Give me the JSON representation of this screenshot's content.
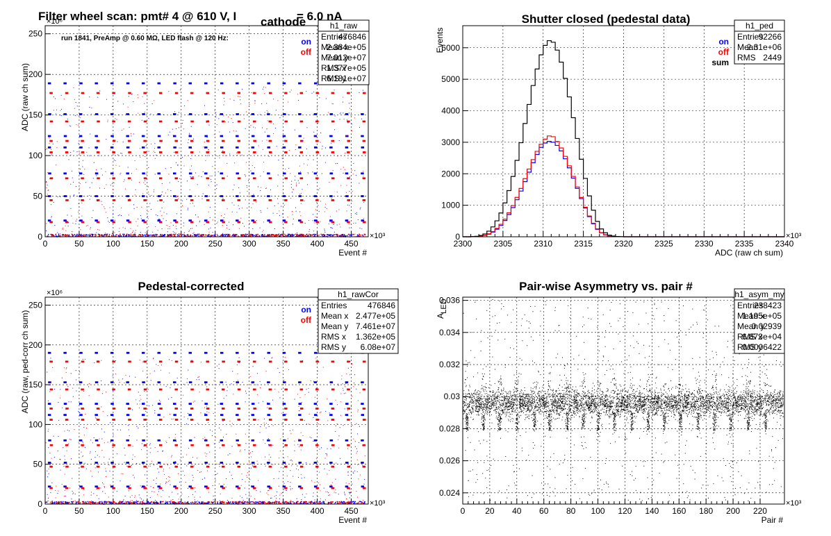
{
  "panels": [
    {
      "id": "raw",
      "title_main": "Filter wheel scan: pmt#   4 @   610 V, I",
      "title_sub": "cathode",
      "title_tail": "= 6.0 nA",
      "note": "run 1841, PreAmp @ 0.60 MΩ, LED flash @  120 Hz:",
      "xlabel": "Event #",
      "ylabel": "ADC (raw ch sum)",
      "x_exp": "×10³",
      "y_exp": "×10⁶",
      "xticks": [
        "0",
        "50",
        "100",
        "150",
        "200",
        "250",
        "300",
        "350",
        "400",
        "450"
      ],
      "yticks": [
        "0",
        "50",
        "100",
        "150",
        "200",
        "250"
      ],
      "legend": [
        {
          "label": "on",
          "color": "#0000ff"
        },
        {
          "label": "off",
          "color": "#ff0000"
        }
      ],
      "stats_name": "h1_raw",
      "stats": [
        [
          "Entries",
          "476846"
        ],
        [
          "Mean x",
          "2.384e+05"
        ],
        [
          "Mean y",
          "7.012e+07"
        ],
        [
          "RMS x",
          "1.377e+05"
        ],
        [
          "RMS y",
          "6.181e+07"
        ]
      ]
    },
    {
      "id": "ped",
      "title_main": "Shutter closed (pedestal data)",
      "xlabel": "ADC (raw ch sum)",
      "ylabel": "Events",
      "x_exp": "×10³",
      "xticks": [
        "2300",
        "2305",
        "2310",
        "2315",
        "2320",
        "2325",
        "2330",
        "2335",
        "2340"
      ],
      "yticks": [
        "0",
        "1000",
        "2000",
        "3000",
        "4000",
        "5000",
        "6000"
      ],
      "legend": [
        {
          "label": "on",
          "color": "#0000ff"
        },
        {
          "label": "off",
          "color": "#ff0000"
        },
        {
          "label": "sum",
          "color": "#000000"
        }
      ],
      "stats_name": "h1_ped",
      "stats": [
        [
          "Entries",
          "92266"
        ],
        [
          "Mean",
          "2.31e+06"
        ],
        [
          "RMS",
          "2449"
        ]
      ]
    },
    {
      "id": "cor",
      "title_main": "Pedestal-corrected",
      "xlabel": "Event #",
      "ylabel": "ADC (raw, ped-corr ch sum)",
      "x_exp": "×10³",
      "y_exp": "×10⁶",
      "xticks": [
        "0",
        "50",
        "100",
        "150",
        "200",
        "250",
        "300",
        "350",
        "400",
        "450"
      ],
      "yticks": [
        "0",
        "50",
        "100",
        "150",
        "200",
        "250"
      ],
      "legend": [
        {
          "label": "on",
          "color": "#0000ff"
        },
        {
          "label": "off",
          "color": "#ff0000"
        }
      ],
      "stats_name": "h1_rawCor",
      "stats": [
        [
          "Entries",
          "476846"
        ],
        [
          "Mean x",
          "2.477e+05"
        ],
        [
          "Mean y",
          "7.461e+07"
        ],
        [
          "RMS x",
          "1.362e+05"
        ],
        [
          "RMS y",
          "6.08e+07"
        ]
      ]
    },
    {
      "id": "asym",
      "title_main": "Pair-wise Asymmetry vs. pair #",
      "xlabel": "Pair #",
      "ylabel": "A",
      "ylabel_sub": "LED",
      "x_exp": "×10³",
      "xticks": [
        "0",
        "20",
        "40",
        "60",
        "80",
        "100",
        "120",
        "140",
        "160",
        "180",
        "200",
        "220"
      ],
      "yticks": [
        "0.024",
        "0.026",
        "0.028",
        "0.03",
        "0.032",
        "0.034",
        "0.036"
      ],
      "stats_name": "h1_asym_my",
      "stats": [
        [
          "Entries",
          "238423"
        ],
        [
          "Mean x",
          "1.195e+05"
        ],
        [
          "Mean y",
          "0.02939"
        ],
        [
          "RMS x",
          "6.873e+04"
        ],
        [
          "RMS y",
          "0.0006422"
        ]
      ]
    }
  ],
  "chart_data": [
    {
      "type": "scatter",
      "title": "Filter wheel scan: pmt#   4 @   610 V, I cathode = 6.0 nA",
      "xlabel": "Event #",
      "ylabel": "ADC (raw ch sum)",
      "xlim": [
        0,
        475
      ],
      "ylim": [
        0,
        260
      ],
      "x_scale": "×10³",
      "y_scale": "×10⁶",
      "grid": true,
      "legend_position": "top-right",
      "filter_levels_on": [
        0,
        20,
        50,
        78,
        110,
        124,
        151,
        189
      ],
      "filter_levels_off": [
        0,
        18,
        45,
        72,
        104,
        118,
        142,
        177
      ],
      "step_centers": [
        7,
        30,
        53,
        76,
        99,
        122,
        145,
        168,
        191,
        214,
        237,
        260,
        283,
        306,
        329,
        352,
        375,
        398,
        421,
        444,
        467
      ],
      "series": [
        {
          "name": "on",
          "color": "#0000ff"
        },
        {
          "name": "off",
          "color": "#ff0000"
        }
      ]
    },
    {
      "type": "line",
      "title": "Shutter closed (pedestal data)",
      "xlabel": "ADC (raw ch sum)",
      "ylabel": "Events",
      "xlim": [
        2300,
        2340
      ],
      "ylim": [
        0,
        6700
      ],
      "x_scale": "×10³",
      "grid": true,
      "legend_position": "top-right",
      "x": [
        2301,
        2302,
        2303,
        2304,
        2305,
        2306,
        2307,
        2308,
        2309,
        2310,
        2311,
        2312,
        2313,
        2314,
        2315,
        2316,
        2317,
        2318,
        2319,
        2320
      ],
      "series": [
        {
          "name": "on",
          "color": "#0000ff",
          "values": [
            0,
            10,
            50,
            180,
            420,
            800,
            1300,
            1900,
            2500,
            2950,
            3050,
            2850,
            2350,
            1700,
            1050,
            500,
            150,
            30,
            5,
            0
          ]
        },
        {
          "name": "off",
          "color": "#ff0000",
          "values": [
            0,
            10,
            60,
            200,
            460,
            860,
            1380,
            2000,
            2600,
            3050,
            3250,
            2950,
            2420,
            1750,
            1080,
            520,
            160,
            35,
            5,
            0
          ]
        },
        {
          "name": "sum",
          "color": "#000000",
          "values": [
            0,
            20,
            110,
            380,
            880,
            1660,
            2680,
            3900,
            5100,
            6000,
            6300,
            5800,
            4770,
            3450,
            2130,
            1020,
            310,
            65,
            10,
            0
          ]
        }
      ]
    },
    {
      "type": "scatter",
      "title": "Pedestal-corrected",
      "xlabel": "Event #",
      "ylabel": "ADC (raw, ped-corr ch sum)",
      "xlim": [
        0,
        475
      ],
      "ylim": [
        0,
        260
      ],
      "x_scale": "×10³",
      "y_scale": "×10⁶",
      "grid": true,
      "legend_position": "top-right",
      "filter_levels_on": [
        2,
        22,
        52,
        80,
        112,
        126,
        153,
        190
      ],
      "filter_levels_off": [
        2,
        20,
        47,
        74,
        106,
        120,
        144,
        179
      ],
      "step_centers": [
        7,
        30,
        53,
        76,
        99,
        122,
        145,
        168,
        191,
        214,
        237,
        260,
        283,
        306,
        329,
        352,
        375,
        398,
        421,
        444,
        467
      ],
      "series": [
        {
          "name": "on",
          "color": "#0000ff"
        },
        {
          "name": "off",
          "color": "#ff0000"
        }
      ]
    },
    {
      "type": "scatter",
      "title": "Pair-wise Asymmetry vs. pair #",
      "xlabel": "Pair #",
      "ylabel": "A LED",
      "xlim": [
        0,
        238
      ],
      "ylim": [
        0.0233,
        0.0362
      ],
      "x_scale": "×10³",
      "grid": true,
      "band_center": 0.0296,
      "band_halfwidth": 0.0007,
      "dip_positions": [
        3,
        15,
        27,
        40,
        53,
        64,
        77,
        89,
        100,
        112,
        125,
        137,
        149,
        161,
        174,
        186,
        198,
        211,
        224
      ]
    }
  ]
}
